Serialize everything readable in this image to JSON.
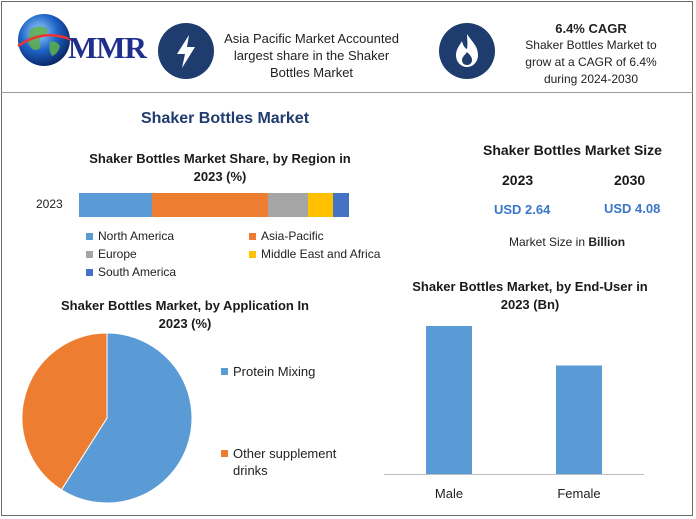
{
  "brand": {
    "logo_text": "MMR"
  },
  "header": {
    "callout_1": {
      "icon": "lightning-icon",
      "lines": [
        "Asia Pacific Market Accounted",
        "largest share in the Shaker",
        "Bottles Market"
      ]
    },
    "callout_2": {
      "icon": "flame-icon",
      "title": "6.4% CAGR",
      "lines": [
        "Shaker Bottles Market to",
        "grow at a CAGR of 6.4%",
        "during 2024-2030"
      ]
    }
  },
  "main_title": "Shaker Bottles Market",
  "market_size": {
    "title": "Shaker Bottles Market Size",
    "years": [
      "2023",
      "2030"
    ],
    "values": [
      "USD 2.64",
      "USD 4.08"
    ],
    "unit_note_prefix": "Market Size in ",
    "unit_note_bold": "Billion"
  },
  "colors": {
    "accent_blue": "#3a76c9",
    "icon_circle": "#1f3c6e"
  },
  "chart_data": [
    {
      "type": "bar",
      "orientation": "horizontal-stacked",
      "title_lines": [
        "Shaker Bottles Market Share, by Region in",
        "2023 (%)"
      ],
      "categories": [
        "2023"
      ],
      "series": [
        {
          "name": "North America",
          "values": [
            27
          ],
          "color": "#5b9bd5"
        },
        {
          "name": "Asia-Pacific",
          "values": [
            43
          ],
          "color": "#ed7d31"
        },
        {
          "name": "Europe",
          "values": [
            15
          ],
          "color": "#a5a5a5"
        },
        {
          "name": "Middle East and Africa",
          "values": [
            9
          ],
          "color": "#ffc000"
        },
        {
          "name": "South America",
          "values": [
            6
          ],
          "color": "#4472c4"
        }
      ]
    },
    {
      "type": "pie",
      "title_lines": [
        "Shaker Bottles Market, by Application In",
        "2023 (%)"
      ],
      "slices": [
        {
          "label": "Protein Mixing",
          "value": 59,
          "color": "#5b9bd5"
        },
        {
          "label": "Other supplement drinks",
          "value": 41,
          "color": "#ed7d31"
        }
      ],
      "legend": [
        {
          "label_lines": [
            "Protein Mixing"
          ],
          "color": "#5b9bd5"
        },
        {
          "label_lines": [
            "Other supplement",
            "drinks"
          ],
          "color": "#ed7d31"
        }
      ]
    },
    {
      "type": "bar",
      "title_lines": [
        "Shaker Bottles Market, by End-User in",
        "2023 (Bn)"
      ],
      "categories": [
        "Male",
        "Female"
      ],
      "values": [
        1.5,
        1.1
      ],
      "ylim": [
        0,
        1.5
      ],
      "color": "#5b9bd5"
    }
  ]
}
